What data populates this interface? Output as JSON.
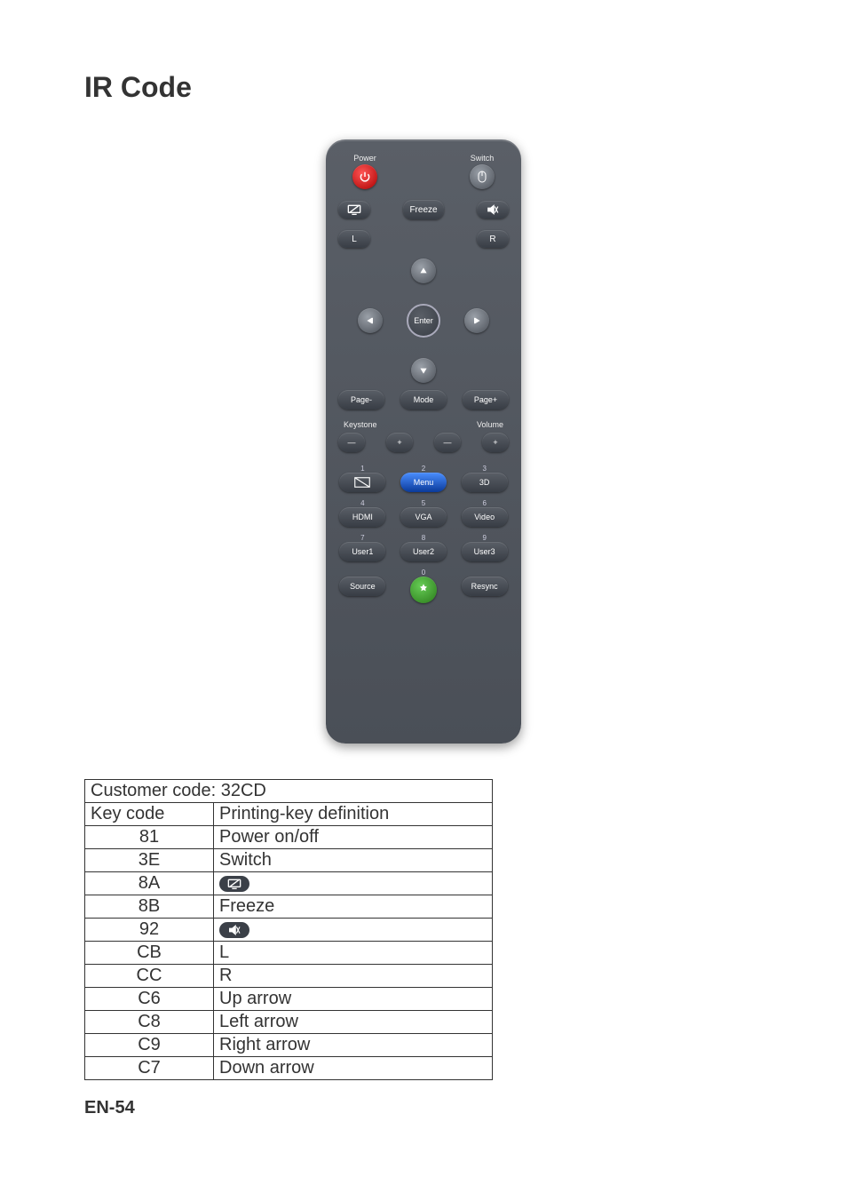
{
  "page": {
    "title": "IR Code",
    "footer": "EN-54"
  },
  "remote": {
    "row1": {
      "left_label": "Power",
      "right_label": "Switch"
    },
    "row2": {
      "freeze_label": "Freeze"
    },
    "row3": {
      "left": "L",
      "right": "R"
    },
    "dpad": {
      "enter": "Enter"
    },
    "row4": {
      "page_minus": "Page-",
      "mode": "Mode",
      "page_plus": "Page+"
    },
    "row5_labels": {
      "keystone": "Keystone",
      "volume": "Volume"
    },
    "kv_symbols": {
      "minus": "—",
      "plus": "+"
    },
    "grid": {
      "r1": {
        "c1_num": "1",
        "c2_num": "2",
        "c3_num": "3",
        "c2_label": "Menu",
        "c3_label": "3D"
      },
      "r2": {
        "c1_num": "4",
        "c2_num": "5",
        "c3_num": "6",
        "c1_label": "HDMI",
        "c2_label": "VGA",
        "c3_label": "Video"
      },
      "r3": {
        "c1_num": "7",
        "c2_num": "8",
        "c3_num": "9",
        "c1_label": "User1",
        "c2_label": "User2",
        "c3_label": "User3"
      },
      "r4": {
        "c2_num": "0",
        "c1_label": "Source",
        "c3_label": "Resync"
      }
    }
  },
  "table": {
    "customer_code_row": "Customer code: 32CD",
    "header": {
      "col0": "Key code",
      "col1": "Printing-key definition"
    },
    "rows": [
      {
        "code": "81",
        "def": "Power on/off",
        "icon": null
      },
      {
        "code": "3E",
        "def": "Switch",
        "icon": null
      },
      {
        "code": "8A",
        "def": "",
        "icon": "computer-cancel-icon"
      },
      {
        "code": "8B",
        "def": "Freeze",
        "icon": null
      },
      {
        "code": "92",
        "def": "",
        "icon": "mute-icon"
      },
      {
        "code": "CB",
        "def": "L",
        "icon": null
      },
      {
        "code": "CC",
        "def": "R",
        "icon": null
      },
      {
        "code": "C6",
        "def": "Up arrow",
        "icon": null
      },
      {
        "code": "C8",
        "def": "Left arrow",
        "icon": null
      },
      {
        "code": "C9",
        "def": "Right arrow",
        "icon": null
      },
      {
        "code": "C7",
        "def": "Down arrow",
        "icon": null
      }
    ],
    "col_widths": {
      "col0": 145,
      "col1": 315
    },
    "border_color": "#333333",
    "font_size": 20
  },
  "colors": {
    "remote_body": "#4a4f57",
    "power_button": "#cc2222",
    "menu_button": "#0a3a9a",
    "eco_button": "#2a7a1a",
    "text": "#333333",
    "background": "#ffffff"
  }
}
